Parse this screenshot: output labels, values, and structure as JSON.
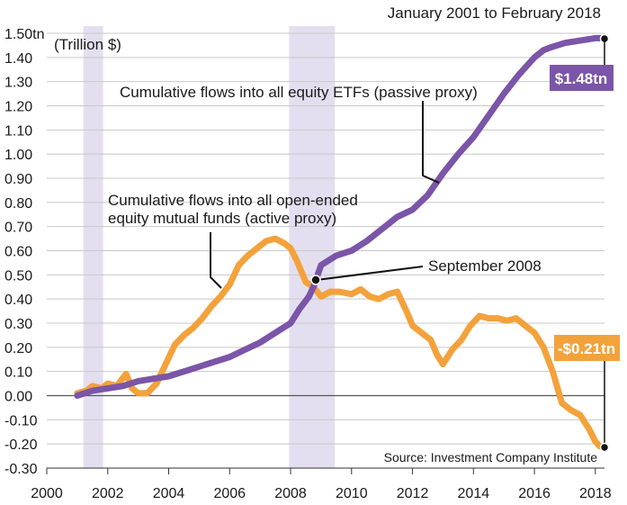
{
  "chart_data": {
    "type": "line",
    "title": "January 2001 to February 2018",
    "unit_label": "(Trillion $)",
    "source": "Source: Investment Company Institute",
    "xlim": [
      2000,
      2018.3
    ],
    "ylim": [
      -0.3,
      1.5
    ],
    "x_ticks": [
      2000,
      2002,
      2004,
      2006,
      2008,
      2010,
      2012,
      2014,
      2016,
      2018
    ],
    "x_tick_labels": [
      "2000",
      "2002",
      "2004",
      "2006",
      "2008",
      "2010",
      "2012",
      "2014",
      "2016",
      "2018"
    ],
    "y_ticks": [
      1.5,
      1.4,
      1.3,
      1.2,
      1.1,
      1.0,
      0.9,
      0.8,
      0.7,
      0.6,
      0.5,
      0.4,
      0.3,
      0.2,
      0.1,
      0.0,
      -0.1,
      -0.2,
      -0.3
    ],
    "y_tick_labels": [
      "1.50tn",
      "1.40",
      "1.30",
      "1.20",
      "1.10",
      "1.00",
      "0.90",
      "0.80",
      "0.70",
      "0.60",
      "0.50",
      "0.40",
      "0.30",
      "0.20",
      "0.10",
      "0.00",
      "-0.10",
      "-0.20",
      "-0.30"
    ],
    "recessions": [
      [
        2001.2,
        2001.85
      ],
      [
        2007.95,
        2009.45
      ]
    ],
    "series": [
      {
        "name": "Cumulative flows into all equity ETFs (passive proxy)",
        "color": "#7b55a8",
        "end_label": "$1.48tn",
        "x": [
          2001.0,
          2001.5,
          2002.0,
          2002.5,
          2003.0,
          2003.5,
          2004.0,
          2004.5,
          2005.0,
          2005.5,
          2006.0,
          2006.5,
          2007.0,
          2007.5,
          2008.0,
          2008.3,
          2008.6,
          2008.75,
          2009.0,
          2009.5,
          2010.0,
          2010.5,
          2011.0,
          2011.5,
          2012.0,
          2012.5,
          2013.0,
          2013.5,
          2014.0,
          2014.5,
          2015.0,
          2015.5,
          2016.0,
          2016.3,
          2016.5,
          2017.0,
          2017.5,
          2018.0,
          2018.15
        ],
        "y": [
          0.0,
          0.02,
          0.03,
          0.04,
          0.06,
          0.07,
          0.08,
          0.1,
          0.12,
          0.14,
          0.16,
          0.19,
          0.22,
          0.26,
          0.3,
          0.36,
          0.41,
          0.45,
          0.54,
          0.58,
          0.6,
          0.64,
          0.69,
          0.74,
          0.77,
          0.83,
          0.92,
          1.0,
          1.07,
          1.16,
          1.25,
          1.33,
          1.4,
          1.43,
          1.44,
          1.46,
          1.47,
          1.48,
          1.48
        ]
      },
      {
        "name": "Cumulative flows into all open-ended equity mutual funds (active proxy)",
        "color": "#f3a23b",
        "end_label": "-$0.21tn",
        "x": [
          2001.0,
          2001.3,
          2001.5,
          2001.8,
          2002.0,
          2002.3,
          2002.6,
          2002.8,
          2003.0,
          2003.3,
          2003.6,
          2003.9,
          2004.2,
          2004.5,
          2004.8,
          2005.1,
          2005.4,
          2005.7,
          2006.0,
          2006.3,
          2006.6,
          2006.9,
          2007.2,
          2007.5,
          2007.8,
          2008.0,
          2008.2,
          2008.5,
          2008.75,
          2009.0,
          2009.3,
          2009.6,
          2010.0,
          2010.3,
          2010.6,
          2010.9,
          2011.2,
          2011.5,
          2011.8,
          2012.0,
          2012.3,
          2012.6,
          2012.8,
          2013.0,
          2013.3,
          2013.6,
          2013.9,
          2014.2,
          2014.5,
          2014.8,
          2015.1,
          2015.4,
          2015.7,
          2016.0,
          2016.3,
          2016.6,
          2016.9,
          2017.2,
          2017.5,
          2017.8,
          2018.0,
          2018.15
        ],
        "y": [
          0.01,
          0.02,
          0.04,
          0.03,
          0.05,
          0.04,
          0.09,
          0.03,
          0.01,
          0.01,
          0.05,
          0.13,
          0.21,
          0.25,
          0.28,
          0.32,
          0.37,
          0.41,
          0.46,
          0.54,
          0.58,
          0.61,
          0.64,
          0.65,
          0.63,
          0.61,
          0.56,
          0.47,
          0.45,
          0.41,
          0.43,
          0.43,
          0.42,
          0.44,
          0.41,
          0.4,
          0.42,
          0.43,
          0.35,
          0.29,
          0.26,
          0.23,
          0.17,
          0.13,
          0.19,
          0.23,
          0.29,
          0.33,
          0.32,
          0.32,
          0.31,
          0.32,
          0.29,
          0.26,
          0.2,
          0.1,
          -0.03,
          -0.06,
          -0.08,
          -0.14,
          -0.19,
          -0.21
        ]
      }
    ],
    "annotations": {
      "etf_label": "Cumulative flows into all equity ETFs (passive proxy)",
      "mf_label_line1": "Cumulative flows into all open-ended",
      "mf_label_line2": "equity mutual funds (active proxy)",
      "sept_label": "September 2008"
    }
  }
}
